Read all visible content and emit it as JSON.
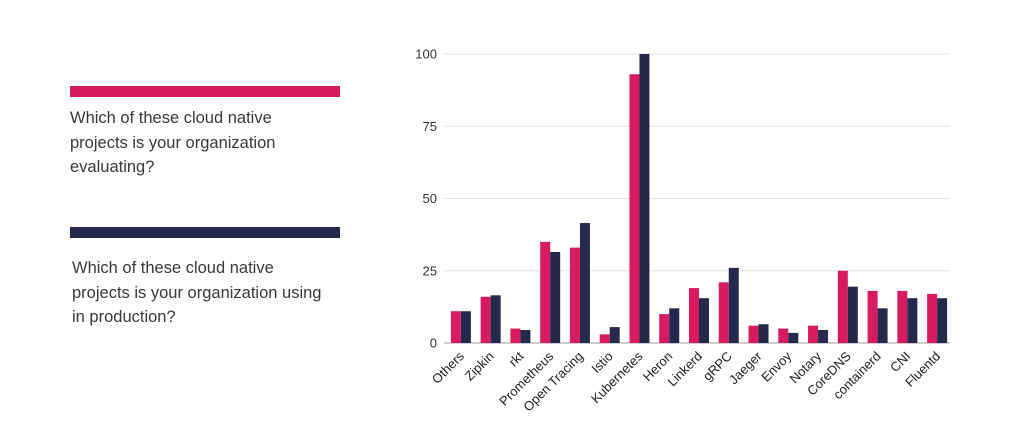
{
  "chart_data": {
    "type": "bar",
    "title": "",
    "xlabel": "",
    "ylabel": "",
    "ylim": [
      0,
      100
    ],
    "yticks": [
      0,
      25,
      50,
      75,
      100
    ],
    "grid": true,
    "legend_position": "left",
    "categories": [
      "Others",
      "Zipkin",
      "rkt",
      "Prometheus",
      "Open Tracing",
      "Istio",
      "Kubernetes",
      "Heron",
      "Linkerd",
      "gRPC",
      "Jaeger",
      "Envoy",
      "Notary",
      "CoreDNS",
      "containerd",
      "CNI",
      "Fluentd"
    ],
    "series": [
      {
        "name": "Which of these cloud native projects is your organization evaluating?",
        "color": "#d81b60",
        "values": [
          11,
          16,
          5,
          35,
          33,
          3,
          93,
          10,
          19,
          21,
          6,
          5,
          6,
          25,
          18,
          18,
          17
        ]
      },
      {
        "name": "Which of these cloud native projects is your organization using in production?",
        "color": "#232a4d",
        "values": [
          11,
          16.5,
          4.5,
          31.5,
          41.5,
          5.5,
          100,
          12,
          15.5,
          26,
          6.5,
          3.5,
          4.5,
          19.5,
          12,
          15.5,
          15.5
        ]
      }
    ]
  }
}
